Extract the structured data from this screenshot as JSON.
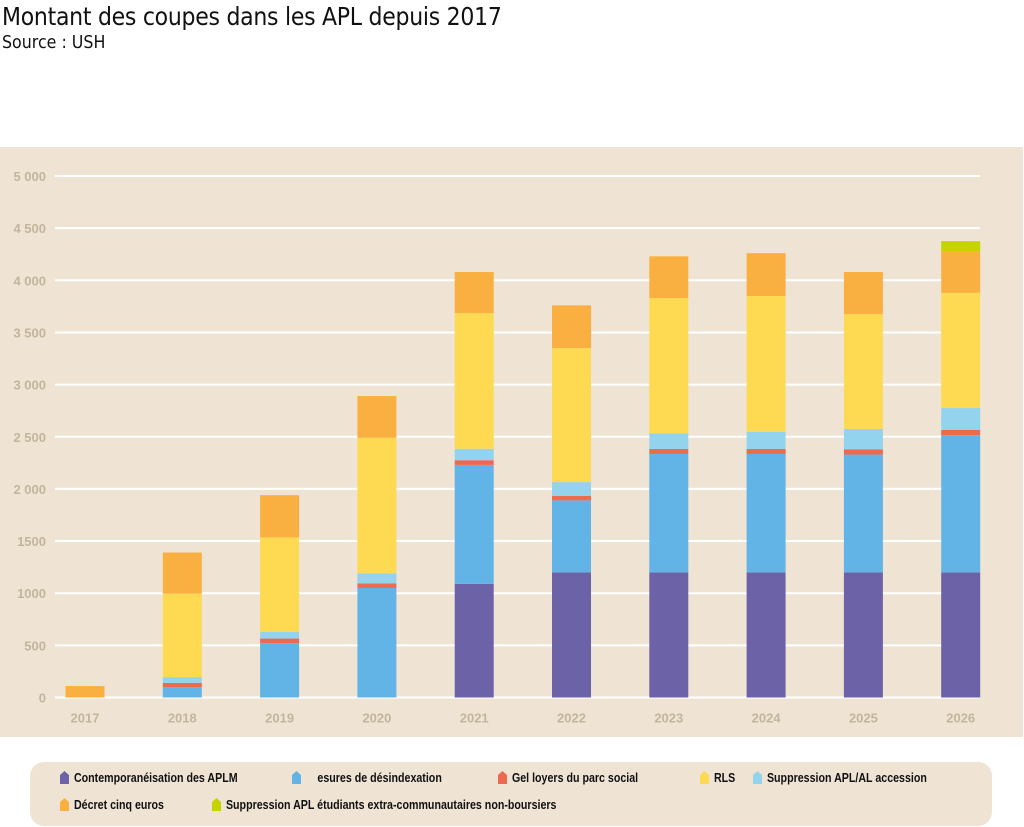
{
  "header": {
    "title": "Montant des coupes dans les APL depuis 2017",
    "subtitle": "Source : USH"
  },
  "chart_data": {
    "type": "bar",
    "stacked": true,
    "title": "Montant des coupes dans les APL depuis 2017",
    "subtitle": "Source : USH",
    "xlabel": "",
    "ylabel": "",
    "ylim": [
      0,
      5000
    ],
    "yticks": [
      0,
      500,
      1000,
      1500,
      2000,
      2500,
      3000,
      3500,
      4000,
      4500,
      5000
    ],
    "ytick_labels": [
      "0",
      "500",
      "1000",
      "1500",
      "2 000",
      "2 500",
      "3 000",
      "3 500",
      "4 000",
      "4 500",
      "5 000"
    ],
    "grid": true,
    "legend_position": "bottom",
    "categories": [
      "2017",
      "2018",
      "2019",
      "2020",
      "2021",
      "2022",
      "2023",
      "2024",
      "2025",
      "2026"
    ],
    "series": [
      {
        "name": "Contemporanéisation des APLM",
        "color": "#6c62a8",
        "values": [
          0,
          0,
          0,
          0,
          1090,
          1200,
          1200,
          1200,
          1200,
          1200
        ]
      },
      {
        "name": "esures de désindexation",
        "color": "#62b4e6",
        "values": [
          0,
          100,
          520,
          1050,
          1140,
          690,
          1135,
          1135,
          1130,
          1315
        ]
      },
      {
        "name": "Gel loyers du parc social",
        "color": "#ec6a50",
        "values": [
          0,
          40,
          45,
          45,
          45,
          42,
          48,
          48,
          50,
          50
        ]
      },
      {
        "name": "Suppression APL/AL accession",
        "color": "#93d3ee",
        "values": [
          0,
          55,
          65,
          95,
          110,
          133,
          150,
          165,
          195,
          210
        ]
      },
      {
        "name": "RLS",
        "color": "#fed952",
        "values": [
          0,
          800,
          905,
          1300,
          1300,
          1285,
          1297,
          1302,
          1100,
          1105
        ]
      },
      {
        "name": "Décret cinq euros",
        "color": "#f9b041",
        "values": [
          110,
          395,
          405,
          400,
          395,
          410,
          400,
          410,
          405,
          400
        ]
      },
      {
        "name": "Suppression APL étudiants extra-communautaires non-boursiers",
        "color": "#c5d300",
        "values": [
          0,
          0,
          0,
          0,
          0,
          0,
          0,
          0,
          0,
          95
        ]
      }
    ]
  },
  "legend": {
    "items": [
      {
        "label": "Contemporanéisation des APLM",
        "color": "#6c62a8"
      },
      {
        "label": "esures de désindexation",
        "color": "#62b4e6"
      },
      {
        "label": "Gel loyers du parc social",
        "color": "#ec6a50"
      },
      {
        "label": "RLS",
        "color": "#fed952"
      },
      {
        "label": "Suppression APL/AL accession",
        "color": "#93d3ee"
      },
      {
        "label": "Décret cinq euros",
        "color": "#f9b041"
      },
      {
        "label": "Suppression APL étudiants extra-communautaires non-boursiers",
        "color": "#c5d300"
      }
    ]
  }
}
